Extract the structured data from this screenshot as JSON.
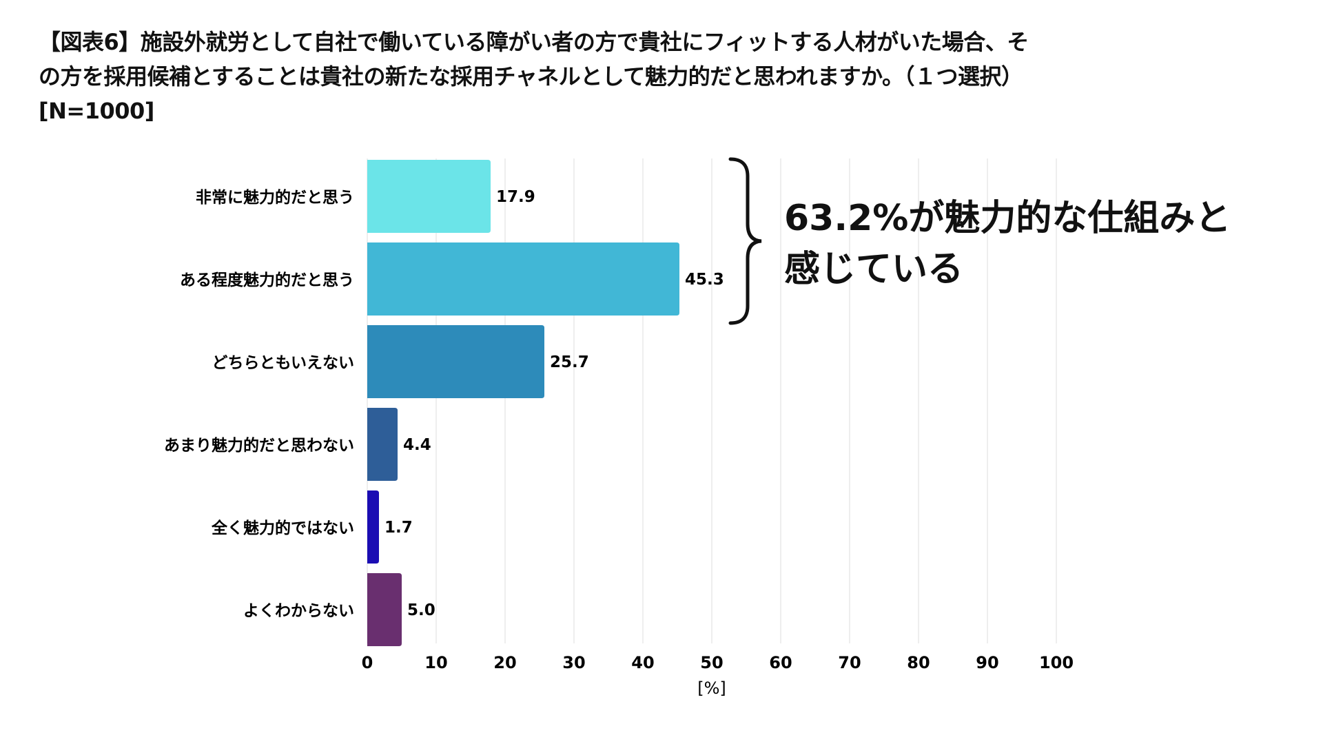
{
  "title_lines": [
    "【図表6】施設外就労として自社で働いている障がい者の方で貴社にフィットする人材がいた場合、そ",
    "の方を採用候補とすることは貴社の新たな採用チャネルとして魅力的だと思われますか。（１つ選択）",
    "[N=1000]"
  ],
  "annotation": {
    "lines": [
      "63.2%が魅力的な仕組みと",
      "感じている"
    ],
    "bracket_covers": [
      "非常に魅力的だと思う",
      "ある程度魅力的だと思う"
    ]
  },
  "chart_data": {
    "type": "bar",
    "orientation": "horizontal",
    "categories": [
      "非常に魅力的だと思う",
      "ある程度魅力的だと思う",
      "どちらともいえない",
      "あまり魅力的だと思わない",
      "全く魅力的ではない",
      "よくわからない"
    ],
    "values": [
      17.9,
      45.3,
      25.7,
      4.4,
      1.7,
      5.0
    ],
    "data_labels": [
      "17.9",
      "45.3",
      "25.7",
      "4.4",
      "1.7",
      "5.0"
    ],
    "colors": [
      "#6be4e8",
      "#41b7d6",
      "#2d8bba",
      "#2e5e98",
      "#1b0db3",
      "#692f6f"
    ],
    "xlabel": "[%]",
    "xlim": [
      0,
      100
    ],
    "xticks": [
      "0",
      "10",
      "20",
      "30",
      "40",
      "50",
      "60",
      "70",
      "80",
      "90",
      "100"
    ],
    "grid": true,
    "legend": "none"
  }
}
